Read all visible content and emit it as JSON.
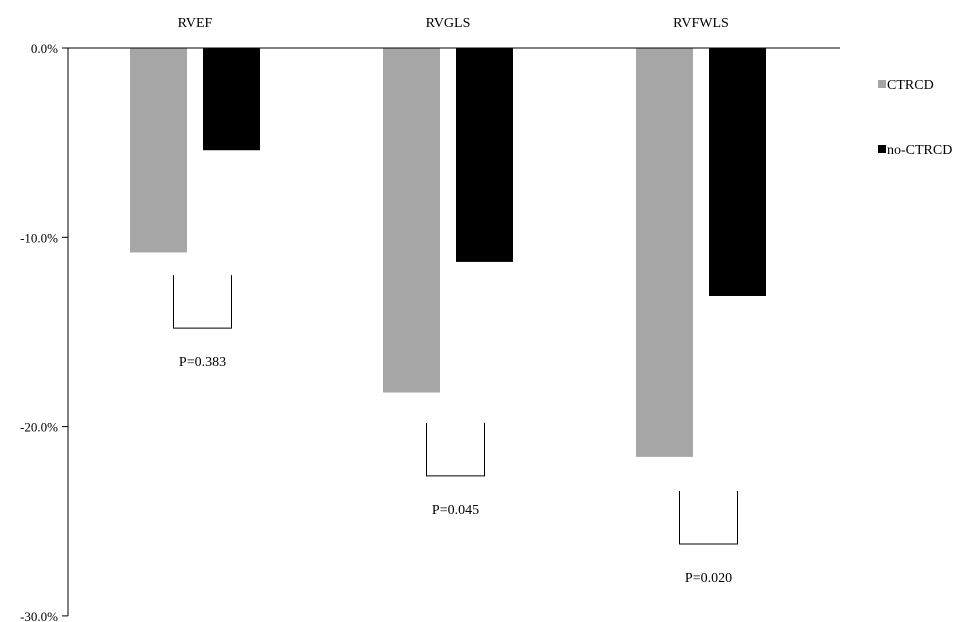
{
  "chart_data": {
    "type": "bar",
    "categories": [
      "RVEF",
      "RVGLS",
      "RVFWLS"
    ],
    "series": [
      {
        "name": "CTRCD",
        "values": [
          -10.8,
          -18.2,
          -21.6
        ],
        "color": "#a6a6a6"
      },
      {
        "name": "no-CTRCD",
        "values": [
          -5.4,
          -11.3,
          -13.1
        ],
        "color": "#000000"
      }
    ],
    "ylim": [
      -30,
      0
    ],
    "yticks": [
      0,
      -10,
      -20,
      -30
    ],
    "ytick_labels": [
      "0.0%",
      "-10.0%",
      "-20.0%",
      "-30.0%"
    ],
    "xlabel": "",
    "ylabel": "",
    "category_label_position": "top",
    "legend_position": "right",
    "grid": false,
    "annotations": [
      {
        "category": "RVEF",
        "text": "P=0.383",
        "bracket_top": -12.0,
        "bracket_bottom": -14.8
      },
      {
        "category": "RVGLS",
        "text": "P=0.045",
        "bracket_top": -19.8,
        "bracket_bottom": -22.6
      },
      {
        "category": "RVFWLS",
        "text": "P=0.020",
        "bracket_top": -23.4,
        "bracket_bottom": -26.2
      }
    ]
  }
}
